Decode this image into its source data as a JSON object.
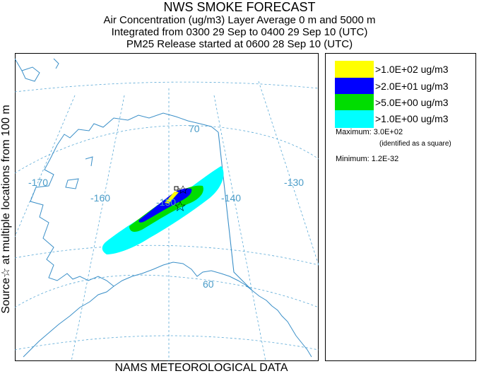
{
  "header": {
    "title": "NWS SMOKE FORECAST",
    "line1": "Air Concentration (ug/m3) Layer Average    0 m and  5000 m",
    "line2": "Integrated from 0300 29 Sep to 0400 29 Sep 10 (UTC)",
    "line3": "PM25 Release started at 0600 28 Sep 10 (UTC)"
  },
  "side_label": "Source☆  at multiple locations  from  100 m",
  "footer": "NAMS METEOROLOGICAL DATA",
  "map": {
    "lon_labels": [
      "-170",
      "-160",
      "-150",
      "-140",
      "-130"
    ],
    "lat_labels": [
      "70",
      "60"
    ],
    "colors": {
      "coast": "#3a8fc8",
      "graticule": "#5aa9d6",
      "border": "#3a8fc8"
    }
  },
  "legend": {
    "items": [
      {
        "label": ">1.0E+02 ug/m3",
        "color": "#ffff00"
      },
      {
        "label": ">2.0E+01 ug/m3",
        "color": "#0000ff"
      },
      {
        "label": ">5.0E+00 ug/m3",
        "color": "#00dd00"
      },
      {
        "label": ">1.0E+00 ug/m3",
        "color": "#00ffff"
      }
    ],
    "maximum": "Maximum: 3.0E+02",
    "maximum_note": "(identified as a square)",
    "minimum": "Minimum: 1.2E-32"
  }
}
